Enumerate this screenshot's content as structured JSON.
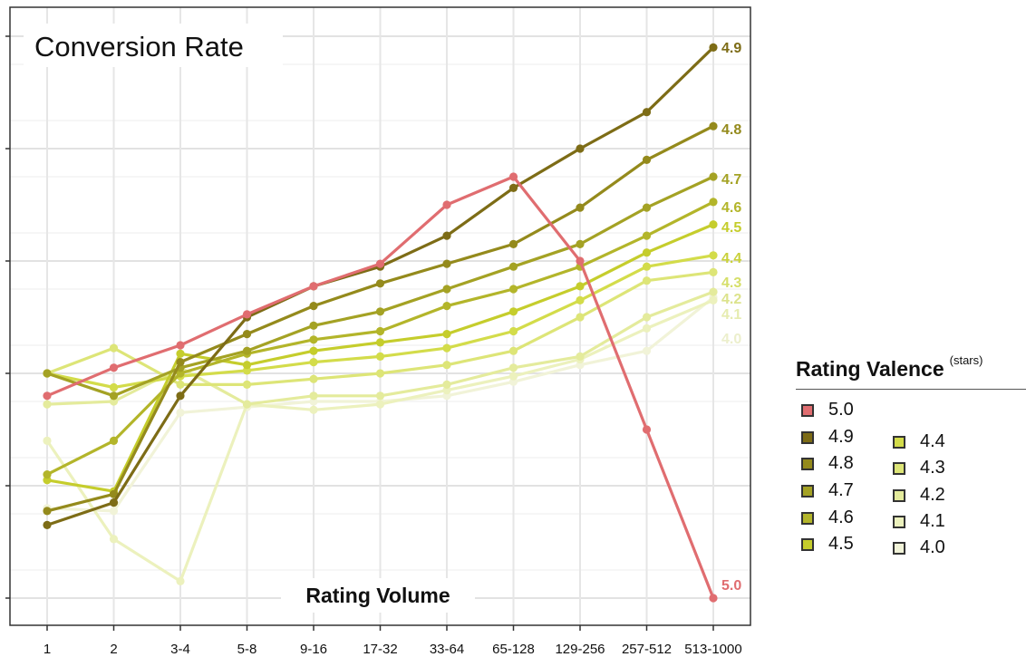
{
  "chart_data": {
    "type": "line",
    "title": "Conversion Rate",
    "xlabel": "Rating Volume",
    "ylabel": "",
    "categories": [
      "1",
      "2",
      "3-4",
      "5-8",
      "9-16",
      "17-32",
      "33-64",
      "65-128",
      "129-256",
      "257-512",
      "513-1000"
    ],
    "ylim": [
      0,
      10.5
    ],
    "y_gridlines": [
      0,
      1,
      2,
      3,
      4,
      5,
      6,
      7,
      8,
      9,
      10
    ],
    "y_tick_labels_shown": false,
    "grid": true,
    "legend": {
      "title": "Rating Valence",
      "title_suffix": "(stars)",
      "placement": "right"
    },
    "series": [
      {
        "name": "5.0",
        "color": "#e06d70",
        "end_label": "5.0",
        "values": [
          3.6,
          4.1,
          4.5,
          5.05,
          5.55,
          5.95,
          7.0,
          7.5,
          6.0,
          3.0,
          0.0
        ]
      },
      {
        "name": "4.9",
        "color": "#7d6c16",
        "end_label": "4.9",
        "values": [
          1.3,
          1.7,
          3.6,
          5.0,
          5.55,
          5.9,
          6.45,
          7.3,
          8.0,
          8.65,
          9.8
        ]
      },
      {
        "name": "4.8",
        "color": "#948a1c",
        "end_label": "4.8",
        "values": [
          1.55,
          1.85,
          4.2,
          4.7,
          5.2,
          5.6,
          5.95,
          6.3,
          6.95,
          7.8,
          8.4
        ]
      },
      {
        "name": "4.7",
        "color": "#a4a224",
        "end_label": "4.7",
        "values": [
          4.0,
          3.6,
          4.1,
          4.4,
          4.85,
          5.1,
          5.5,
          5.9,
          6.3,
          6.95,
          7.5
        ]
      },
      {
        "name": "4.6",
        "color": "#b3b52a",
        "end_label": "4.6",
        "values": [
          2.2,
          2.8,
          4.0,
          4.35,
          4.6,
          4.75,
          5.2,
          5.5,
          5.9,
          6.45,
          7.05
        ]
      },
      {
        "name": "4.5",
        "color": "#c5cd2c",
        "end_label": "4.5",
        "values": [
          2.1,
          1.9,
          4.35,
          4.15,
          4.4,
          4.55,
          4.7,
          5.1,
          5.55,
          6.15,
          6.65
        ]
      },
      {
        "name": "4.4",
        "color": "#d3dc4a",
        "end_label": "4.4",
        "values": [
          4.0,
          3.75,
          3.95,
          4.05,
          4.2,
          4.3,
          4.45,
          4.75,
          5.3,
          5.9,
          6.1
        ]
      },
      {
        "name": "4.3",
        "color": "#dde577",
        "end_label": "4.3",
        "values": [
          4.0,
          4.45,
          3.8,
          3.8,
          3.9,
          4.0,
          4.15,
          4.4,
          5.0,
          5.65,
          5.8
        ]
      },
      {
        "name": "4.2",
        "color": "#e4eb9c",
        "end_label": "4.2",
        "values": [
          3.45,
          3.5,
          4.1,
          3.45,
          3.6,
          3.6,
          3.8,
          4.1,
          4.3,
          5.0,
          5.45
        ]
      },
      {
        "name": "4.1",
        "color": "#ecf1bd",
        "end_label": "4.1",
        "values": [
          2.8,
          1.05,
          0.3,
          3.45,
          3.35,
          3.45,
          3.7,
          3.95,
          4.25,
          4.8,
          5.3
        ]
      },
      {
        "name": "4.0",
        "color": "#f1f3d8",
        "end_label": "4.0",
        "values": [
          1.6,
          1.55,
          3.3,
          3.4,
          3.5,
          3.5,
          3.6,
          3.85,
          4.15,
          4.4,
          5.35
        ]
      }
    ]
  },
  "legend_items": {
    "i0": "5.0",
    "i1": "4.9",
    "i2": "4.8",
    "i3": "4.7",
    "i4": "4.6",
    "i5": "4.5",
    "i6": "4.4",
    "i7": "4.3",
    "i8": "4.2",
    "i9": "4.1",
    "i10": "4.0"
  }
}
